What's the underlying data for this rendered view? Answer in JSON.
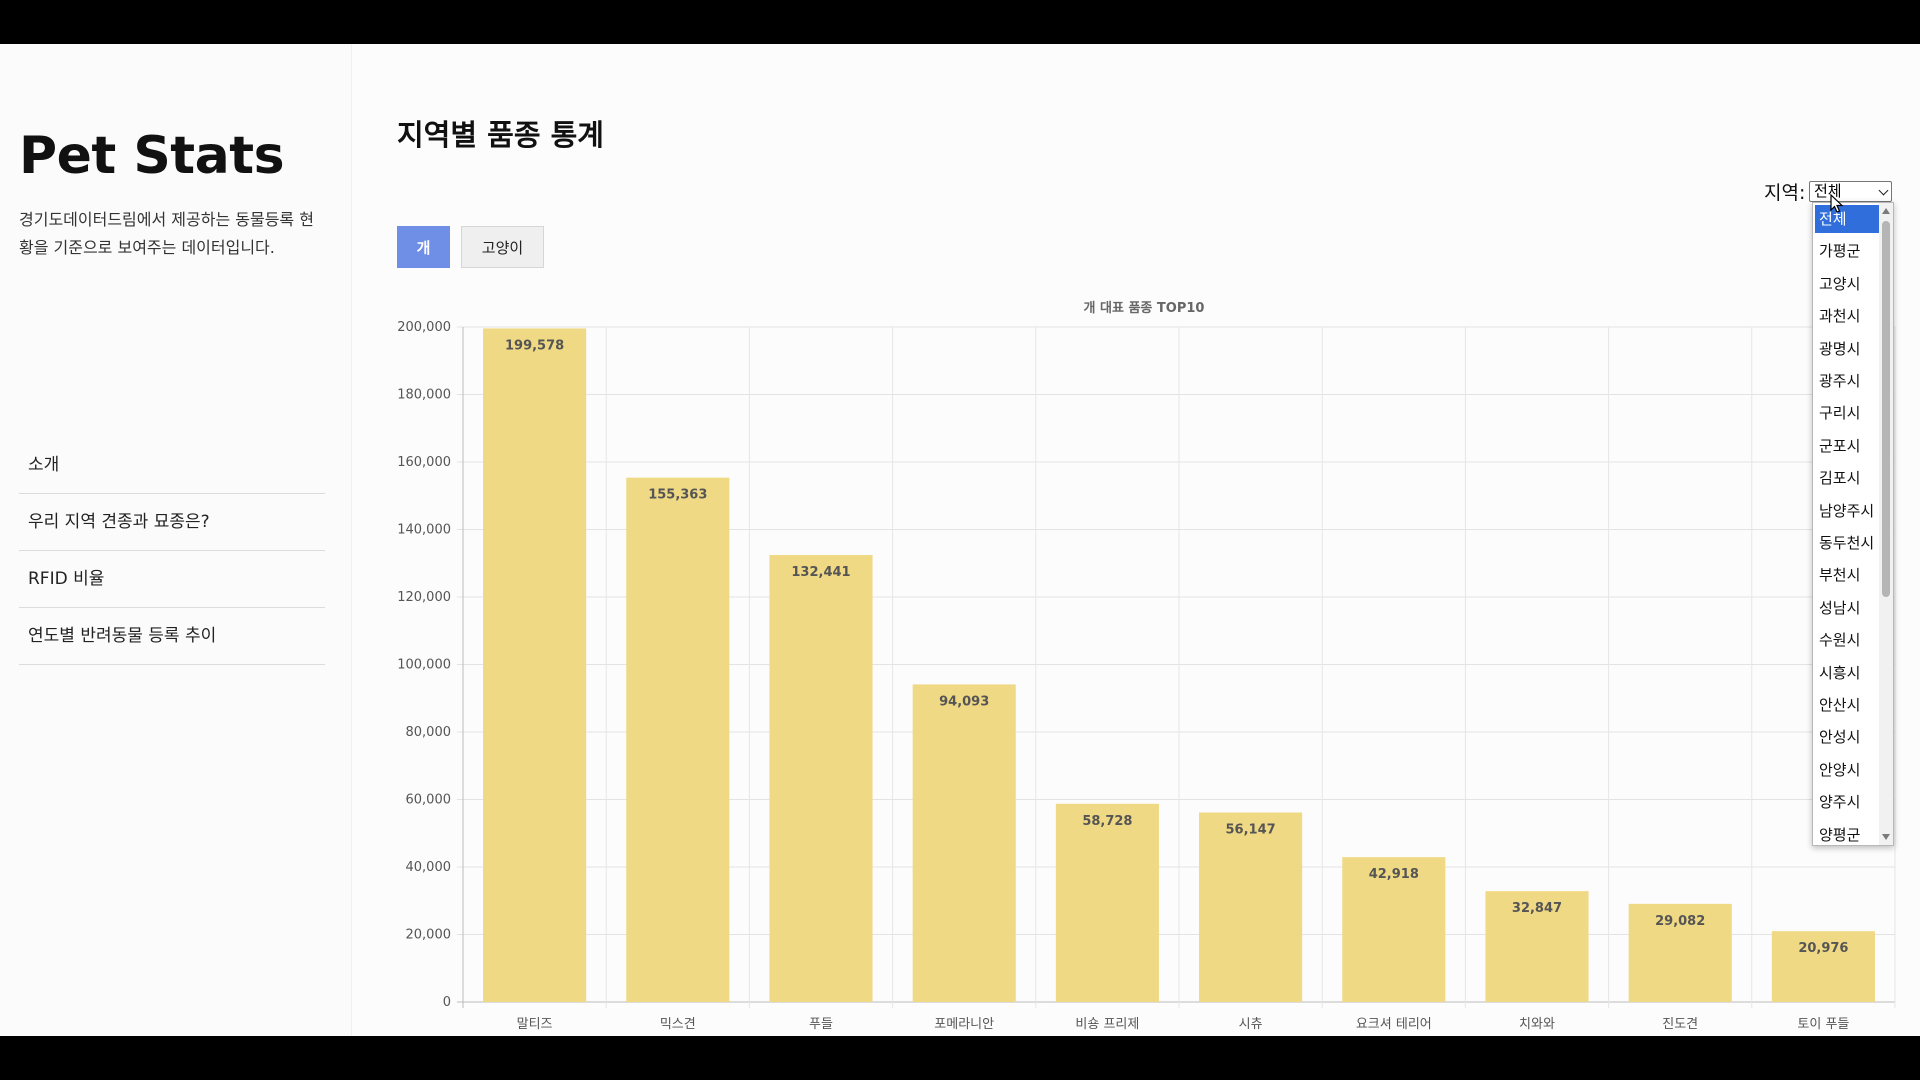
{
  "sidebar": {
    "app_title": "Pet Stats",
    "description": "경기도데이터드림에서 제공하는 동물등록 현황을 기준으로 보여주는 데이터입니다.",
    "nav_items": [
      {
        "label": "소개"
      },
      {
        "label": "우리 지역 견종과 묘종은?"
      },
      {
        "label": "RFID 비율"
      },
      {
        "label": "연도별 반려동물 등록 추이"
      }
    ]
  },
  "main": {
    "title": "지역별 품종 통계",
    "region_label": "지역:",
    "region_selected": "전체",
    "tabs": [
      {
        "label": "개",
        "active": true
      },
      {
        "label": "고양이",
        "active": false
      }
    ],
    "region_options": [
      "전체",
      "가평군",
      "고양시",
      "과천시",
      "광명시",
      "광주시",
      "구리시",
      "군포시",
      "김포시",
      "남양주시",
      "동두천시",
      "부천시",
      "성남시",
      "수원시",
      "시흥시",
      "안산시",
      "안성시",
      "안양시",
      "양주시",
      "양평군"
    ]
  },
  "chart_data": {
    "type": "bar",
    "title": "개 대표 품종 TOP10",
    "categories": [
      "말티즈",
      "믹스견",
      "푸들",
      "포메라니안",
      "비숑 프리제",
      "시츄",
      "요크셔 테리어",
      "치와와",
      "진도견",
      "토이 푸들"
    ],
    "values": [
      199578,
      155363,
      132441,
      94093,
      58728,
      56147,
      42918,
      32847,
      29082,
      20976
    ],
    "data_labels": [
      "199,578",
      "155,363",
      "132,441",
      "94,093",
      "58,728",
      "56,147",
      "42,918",
      "32,847",
      "29,082",
      "20,976"
    ],
    "y_ticks": [
      "0",
      "20,000",
      "40,000",
      "60,000",
      "80,000",
      "100,000",
      "120,000",
      "140,000",
      "160,000",
      "180,000",
      "200,000"
    ],
    "ylim": [
      0,
      200000
    ],
    "grid": true,
    "bar_color": "#f0d984"
  }
}
